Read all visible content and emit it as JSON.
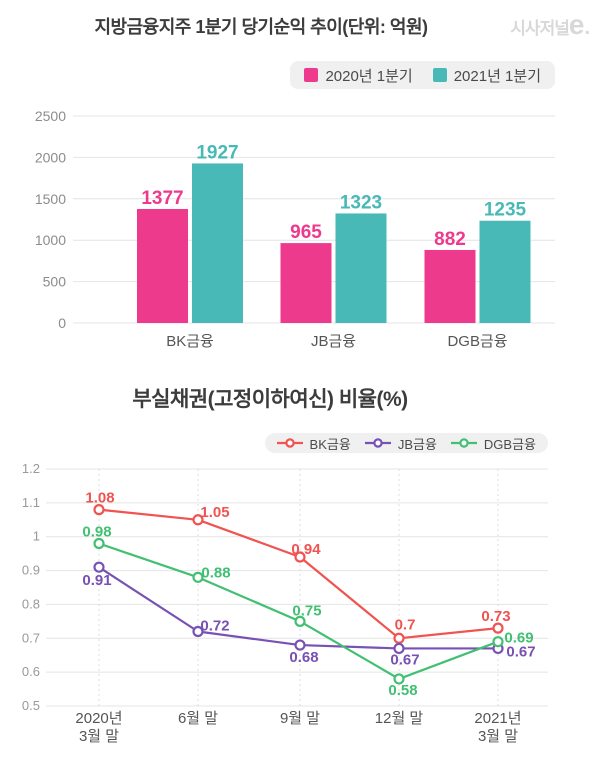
{
  "logo": {
    "korean": "시사저널",
    "e": "e",
    "dot": ".",
    "color": "#d8d8d8"
  },
  "chart_data": [
    {
      "type": "bar",
      "title": "지방금융지주 1분기 당기순익 추이(단위: 억원)",
      "categories": [
        "BK금융",
        "JB금융",
        "DGB금융"
      ],
      "series": [
        {
          "name": "2020년 1분기",
          "slug": "2020-q1",
          "color": "#ee3a8c",
          "values": [
            1377,
            965,
            882
          ]
        },
        {
          "name": "2021년 1분기",
          "slug": "2021-q1",
          "color": "#48b9b6",
          "values": [
            1927,
            1323,
            1235
          ]
        }
      ],
      "ylim": [
        0,
        2500
      ],
      "yticks": [
        0,
        500,
        1000,
        1500,
        2000,
        2500
      ],
      "grid": true,
      "legend_position": "top-right",
      "value_labels": true
    },
    {
      "type": "line",
      "title": "부실채권(고정이하여신) 비율(%)",
      "x_labels": [
        [
          "2020년",
          "3월 말"
        ],
        [
          "6월 말"
        ],
        [
          "9월 말"
        ],
        [
          "12월 말"
        ],
        [
          "2021년",
          "3월 말"
        ]
      ],
      "series": [
        {
          "name": "BK금융",
          "slug": "bk",
          "color": "#f05350",
          "values": [
            1.08,
            1.05,
            0.94,
            0.7,
            0.73
          ],
          "label_offsets": [
            [
              1,
              -7
            ],
            [
              17,
              -3
            ],
            [
              6,
              -3
            ],
            [
              6,
              -9
            ],
            [
              -2,
              -7
            ]
          ]
        },
        {
          "name": "JB금융",
          "slug": "jb",
          "color": "#7851b4",
          "values": [
            0.91,
            0.72,
            0.68,
            0.67,
            0.67
          ],
          "label_offsets": [
            [
              -2,
              18
            ],
            [
              17,
              -1
            ],
            [
              4,
              17
            ],
            [
              6,
              16
            ],
            [
              23,
              8
            ]
          ]
        },
        {
          "name": "DGB금융",
          "slug": "dgb",
          "color": "#42c072",
          "values": [
            0.98,
            0.88,
            0.75,
            0.58,
            0.69
          ],
          "label_offsets": [
            [
              -2,
              -7
            ],
            [
              18,
              0
            ],
            [
              7,
              -6
            ],
            [
              4,
              16
            ],
            [
              21,
              1
            ]
          ]
        }
      ],
      "ylim": [
        0.5,
        1.2
      ],
      "yticks": [
        0.5,
        0.6,
        0.7,
        0.8,
        0.9,
        1,
        1.1,
        1.2
      ],
      "grid": true,
      "vertical_grid": "dotted",
      "legend_position": "top-right",
      "value_labels": true
    }
  ]
}
